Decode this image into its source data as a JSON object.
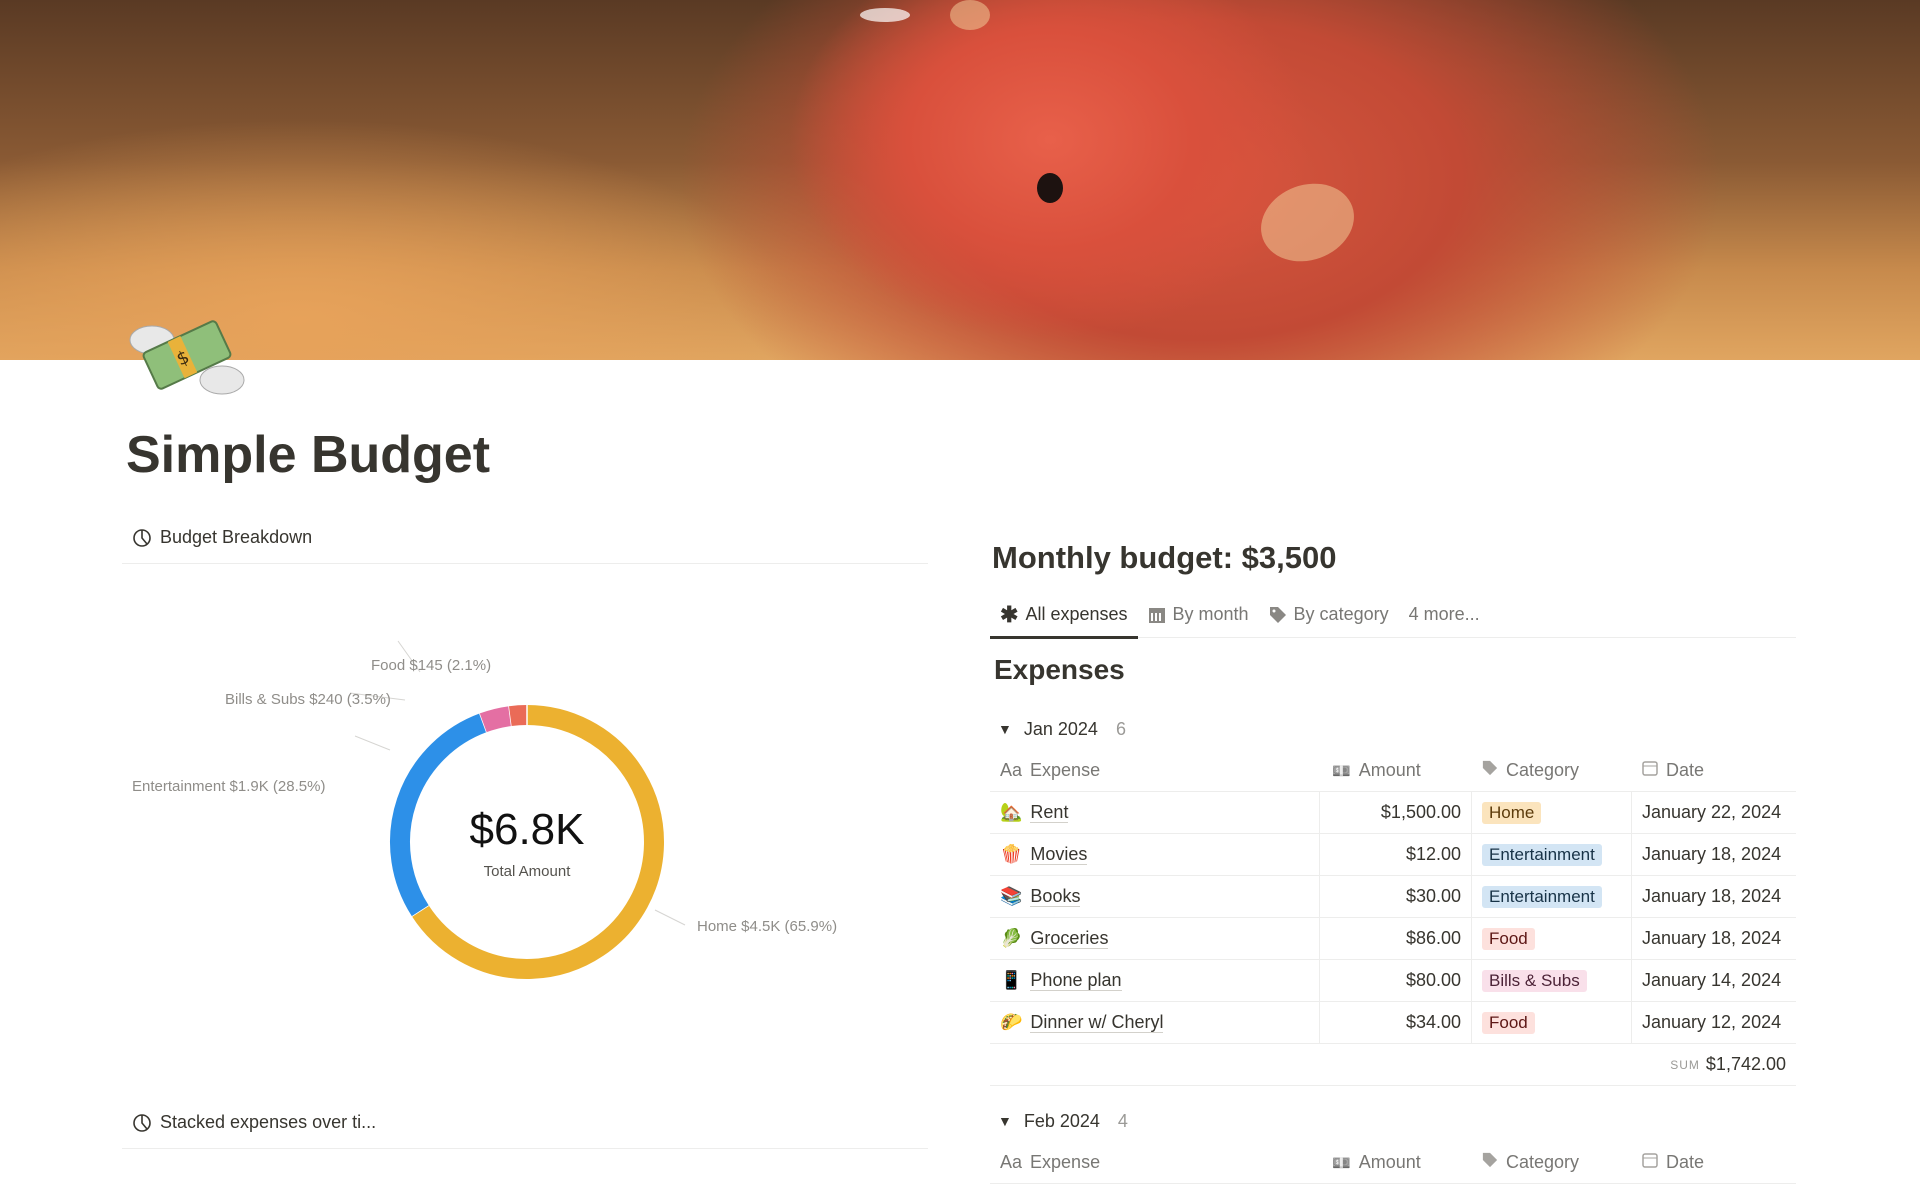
{
  "page": {
    "title": "Simple Budget",
    "icon": "money-with-wings-icon"
  },
  "left": {
    "budget_breakdown": "Budget Breakdown",
    "stacked": "Stacked expenses over ti..."
  },
  "chart_data": {
    "type": "pie",
    "donut": true,
    "center_value": "$6.8K",
    "center_label": "Total Amount",
    "slices": [
      {
        "name": "Home",
        "label": "Home $4.5K (65.9%)",
        "value": 4500,
        "percent": 65.9,
        "color": "#ecb130"
      },
      {
        "name": "Entertainment",
        "label": "Entertainment $1.9K (28.5%)",
        "value": 1900,
        "percent": 28.5,
        "color": "#2d90e8"
      },
      {
        "name": "Bills & Subs",
        "label": "Bills & Subs $240 (3.5%)",
        "value": 240,
        "percent": 3.5,
        "color": "#e46fa3"
      },
      {
        "name": "Food",
        "label": "Food $145 (2.1%)",
        "value": 145,
        "percent": 2.1,
        "color": "#ea6b57"
      }
    ]
  },
  "right": {
    "monthly_budget": "Monthly budget: $3,500",
    "tabs": [
      {
        "label": "All expenses",
        "icon": "asterisk-icon"
      },
      {
        "label": "By month",
        "icon": "calendar-icon"
      },
      {
        "label": "By category",
        "icon": "tag-icon"
      },
      {
        "label": "4 more..."
      }
    ],
    "db_title": "Expenses",
    "columns": {
      "expense": "Expense",
      "amount": "Amount",
      "category": "Category",
      "date": "Date",
      "expense_prefix": "Aa"
    },
    "groups": [
      {
        "label": "Jan 2024",
        "count": "6",
        "sum_label": "SUM",
        "sum": "$1,742.00",
        "rows": [
          {
            "emoji": "🏡",
            "name": "Rent",
            "amount": "$1,500.00",
            "category": "Home",
            "date": "January 22, 2024"
          },
          {
            "emoji": "🍿",
            "name": "Movies",
            "amount": "$12.00",
            "category": "Entertainment",
            "date": "January 18, 2024"
          },
          {
            "emoji": "📚",
            "name": "Books",
            "amount": "$30.00",
            "category": "Entertainment",
            "date": "January 18, 2024"
          },
          {
            "emoji": "🥬",
            "name": "Groceries",
            "amount": "$86.00",
            "category": "Food",
            "date": "January 18, 2024"
          },
          {
            "emoji": "📱",
            "name": "Phone plan",
            "amount": "$80.00",
            "category": "Bills & Subs",
            "date": "January 14, 2024"
          },
          {
            "emoji": "🌮",
            "name": "Dinner w/ Cheryl",
            "amount": "$34.00",
            "category": "Food",
            "date": "January 12, 2024"
          }
        ]
      },
      {
        "label": "Feb 2024",
        "count": "4",
        "rows": []
      }
    ],
    "tag_colors": {
      "Home": {
        "bg": "#fbe4bd",
        "fg": "#5c3b0b"
      },
      "Entertainment": {
        "bg": "#d3e5f4",
        "fg": "#183347"
      },
      "Food": {
        "bg": "#fde1dd",
        "fg": "#5d1715"
      },
      "Bills & Subs": {
        "bg": "#f9e0ea",
        "fg": "#4c2337"
      }
    }
  }
}
